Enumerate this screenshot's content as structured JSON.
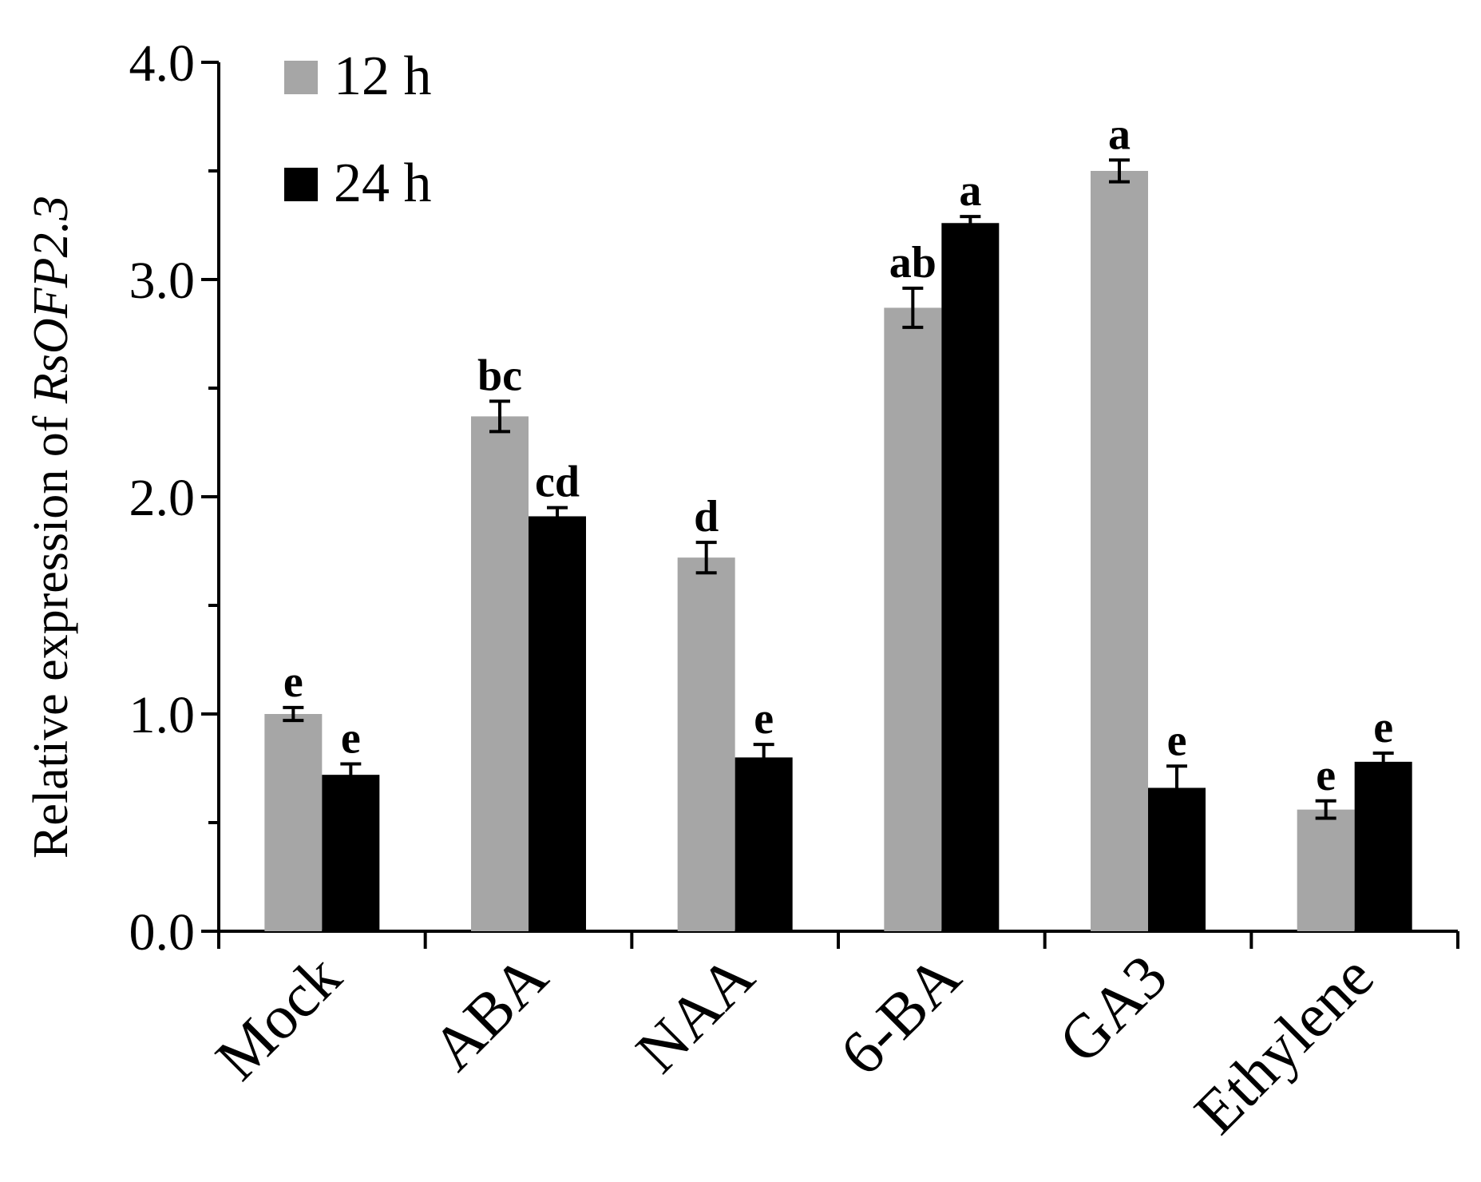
{
  "chart_data": {
    "type": "bar",
    "ylabel": "Relative expression of ",
    "ylabel_gene": "RsOFP2.3",
    "ylim": [
      0,
      4.0
    ],
    "yticks": [
      0.0,
      1.0,
      2.0,
      3.0,
      4.0
    ],
    "ytick_labels": [
      "0.0",
      "1.0",
      "2.0",
      "3.0",
      "4.0"
    ],
    "grid": false,
    "legend_position": "top-left",
    "categories": [
      "Mock",
      "ABA",
      "NAA",
      "6-BA",
      "GA3",
      "Ethylene"
    ],
    "series": [
      {
        "name": "12 h",
        "color": "#a6a6a6",
        "values": [
          1.0,
          2.37,
          1.72,
          2.87,
          3.5,
          0.56
        ],
        "errors": [
          0.03,
          0.07,
          0.07,
          0.09,
          0.05,
          0.04
        ],
        "significance": [
          "e",
          "bc",
          "d",
          "ab",
          "a",
          "e"
        ]
      },
      {
        "name": "24 h",
        "color": "#000000",
        "values": [
          0.72,
          1.91,
          0.8,
          3.26,
          0.66,
          0.78
        ],
        "errors": [
          0.05,
          0.04,
          0.06,
          0.03,
          0.1,
          0.04
        ],
        "significance": [
          "e",
          "cd",
          "e",
          "a",
          "e",
          "e"
        ]
      }
    ]
  }
}
